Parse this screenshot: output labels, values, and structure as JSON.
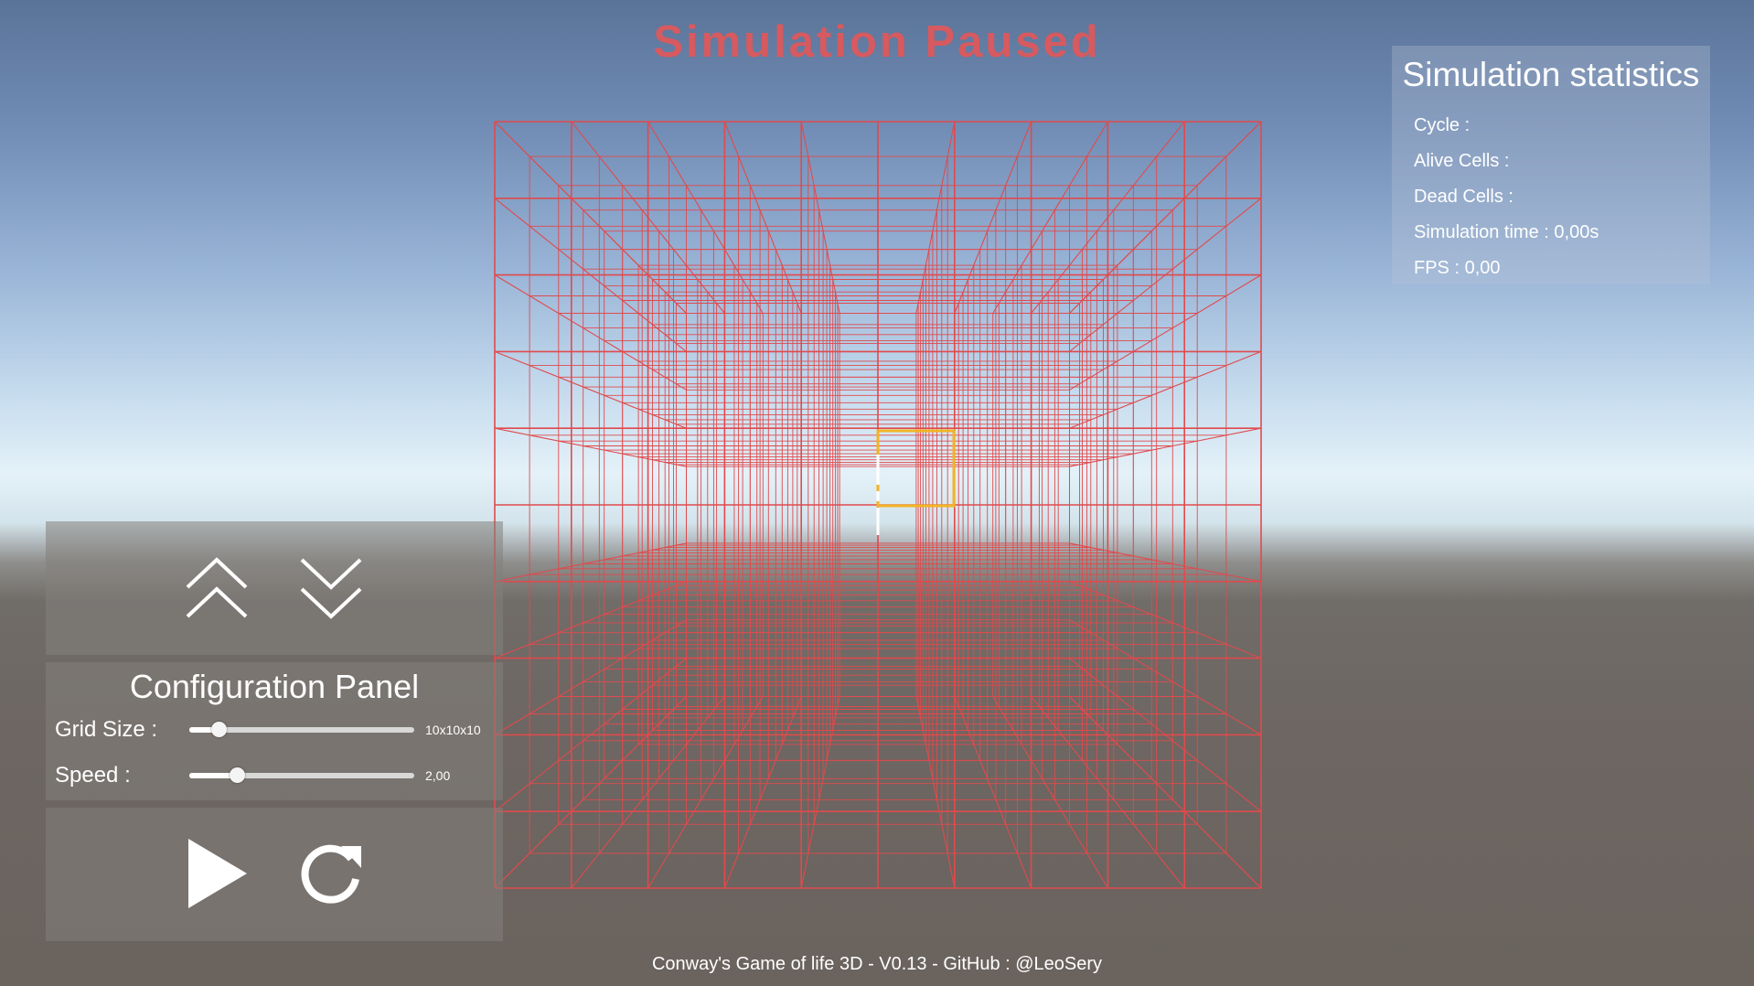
{
  "status": {
    "title": "Simulation Paused"
  },
  "stats": {
    "title": "Simulation statistics",
    "cycle": "Cycle :",
    "alive": "Alive Cells :",
    "dead": "Dead Cells :",
    "time": "Simulation time : 0,00s",
    "fps": "FPS : 0,00"
  },
  "layer_nav": {
    "up_icon": "double-chevron-up-icon",
    "down_icon": "double-chevron-down-icon"
  },
  "config": {
    "title": "Configuration Panel",
    "grid_size": {
      "label": "Grid Size :",
      "value": "10x10x10",
      "fraction": 0.13
    },
    "speed": {
      "label": "Speed :",
      "value": "2,00",
      "fraction": 0.21
    }
  },
  "controls": {
    "play_icon": "play-icon",
    "reset_icon": "reset-icon"
  },
  "footer": "Conway's Game of life 3D - V0.13 - GitHub : @LeoSery",
  "colors": {
    "grid": "#e04a4d",
    "title": "#d65a5f",
    "selection": "#f2b424",
    "panel": "#847f7b"
  }
}
